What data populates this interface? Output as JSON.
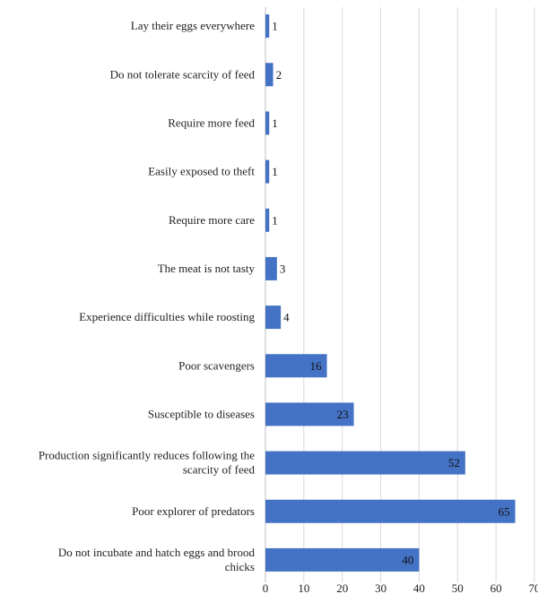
{
  "chart_data": {
    "type": "bar",
    "orientation": "horizontal",
    "title": "",
    "xlabel": "",
    "ylabel": "",
    "xlim": [
      0,
      70
    ],
    "x_ticks": [
      "0",
      "10",
      "20",
      "30",
      "40",
      "50",
      "60",
      "70"
    ],
    "grid": true,
    "bar_color": "#4472C4",
    "categories": [
      [
        "Lay their eggs everywhere"
      ],
      [
        "Do not tolerate scarcity of feed"
      ],
      [
        "Require more feed"
      ],
      [
        "Easily exposed to theft"
      ],
      [
        "Require more care"
      ],
      [
        "The meat is not tasty"
      ],
      [
        "Experience difficulties while roosting"
      ],
      [
        "Poor scavengers"
      ],
      [
        "Susceptible to diseases"
      ],
      [
        "Production significantly reduces following the",
        "scarcity of feed"
      ],
      [
        "Poor explorer of predators"
      ],
      [
        "Do not incubate and hatch eggs and brood",
        "chicks"
      ]
    ],
    "values": [
      1,
      2,
      1,
      1,
      1,
      3,
      4,
      16,
      23,
      52,
      65,
      40
    ],
    "data_labels": [
      "1",
      "2",
      "1",
      "1",
      "1",
      "3",
      "4",
      "16",
      "23",
      "52",
      "65",
      "40"
    ]
  }
}
